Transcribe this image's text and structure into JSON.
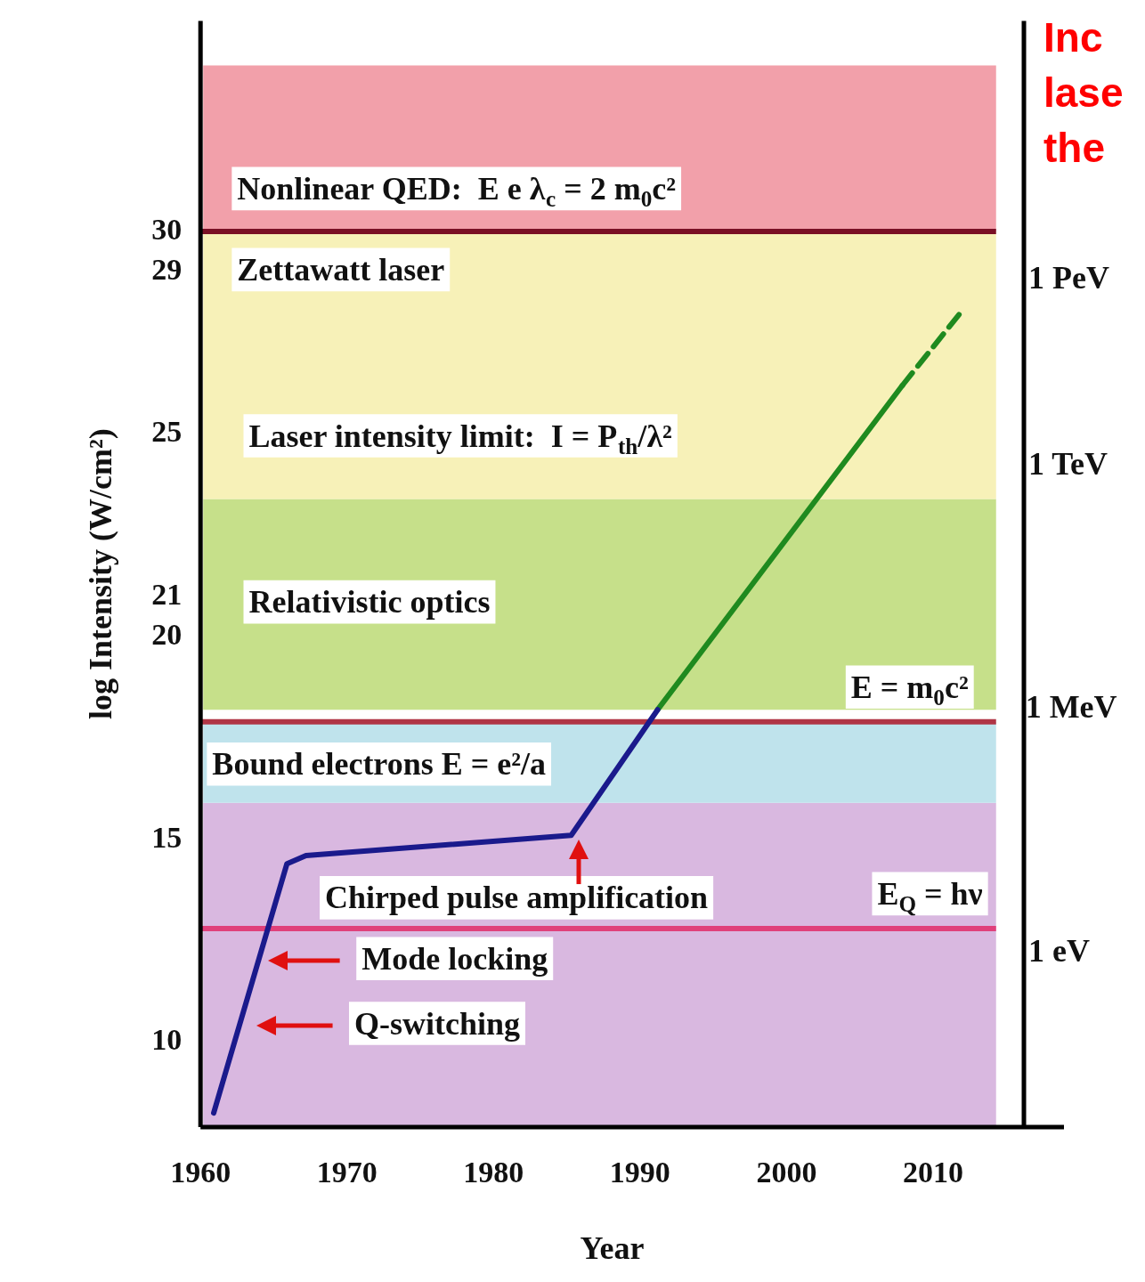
{
  "chart_data": {
    "type": "line",
    "xlabel": "Year",
    "ylabel": "log Intensity (W/cm²)",
    "xlim": [
      1960,
      2016.2
    ],
    "xticks": [
      1960,
      1970,
      1980,
      1990,
      2000,
      2010
    ],
    "ylim": [
      7.9,
      35.2
    ],
    "yticks": [
      10,
      15,
      20,
      21,
      25,
      29,
      30
    ],
    "series": [
      {
        "color": "#1a1a8c",
        "x": [
          1960.9,
          1965.9,
          1967.2,
          1985.3,
          1991.2
        ],
        "values": [
          8.25,
          14.4,
          14.6,
          15.1,
          18.2
        ],
        "line_style": "solid"
      },
      {
        "color": "#1f8a1f",
        "x": [
          1991.2,
          2007.9
        ],
        "values": [
          18.2,
          26.2
        ],
        "line_style": "solid"
      },
      {
        "color": "#1f8a1f",
        "x": [
          2007.9,
          2012.1
        ],
        "values": [
          26.2,
          28.1
        ],
        "line_style": "dashed"
      }
    ],
    "bands": [
      {
        "axis": "y",
        "from": 7.9,
        "to": 15.9,
        "label": null,
        "color": "#d9b8e0"
      },
      {
        "axis": "y",
        "from": 15.9,
        "to": 17.9,
        "label": "Bound electrons E = e²/a",
        "color": "#bfe3ec"
      },
      {
        "axis": "y",
        "from": 18.2,
        "to": 23.4,
        "label": "Relativistic optics",
        "color": "#c6e08a"
      },
      {
        "axis": "y",
        "from": 23.4,
        "to": 30,
        "label": "Laser intensity limit:  I = P$_{th}$/λ²",
        "color": "#f7f1b8"
      },
      {
        "axis": "y",
        "from": 30,
        "to": 34.1,
        "label": null,
        "color": "#f2a0aa"
      }
    ],
    "ref_lines": [
      {
        "axis": "y",
        "value": 30,
        "label": null,
        "color": "#7a1025"
      },
      {
        "axis": "y",
        "value": 17.9,
        "label": "E = m$_{0}$c²",
        "color": "#b03545"
      },
      {
        "axis": "y",
        "value": 12.8,
        "label": "E$_{Q}$ = hν",
        "color": "#e0407a"
      }
    ],
    "annotations": [
      "Nonlinear QED:  E e λ$_{c}$ = 2 m$_{0}$c²",
      "Zettawatt laser",
      "Mode locking",
      "Q-switching",
      "Chirped pulse amplification",
      "1 PeV",
      "1 TeV",
      "1 MeV",
      "1 eV",
      "Inc lase the"
    ],
    "legend": false,
    "grid": false
  }
}
